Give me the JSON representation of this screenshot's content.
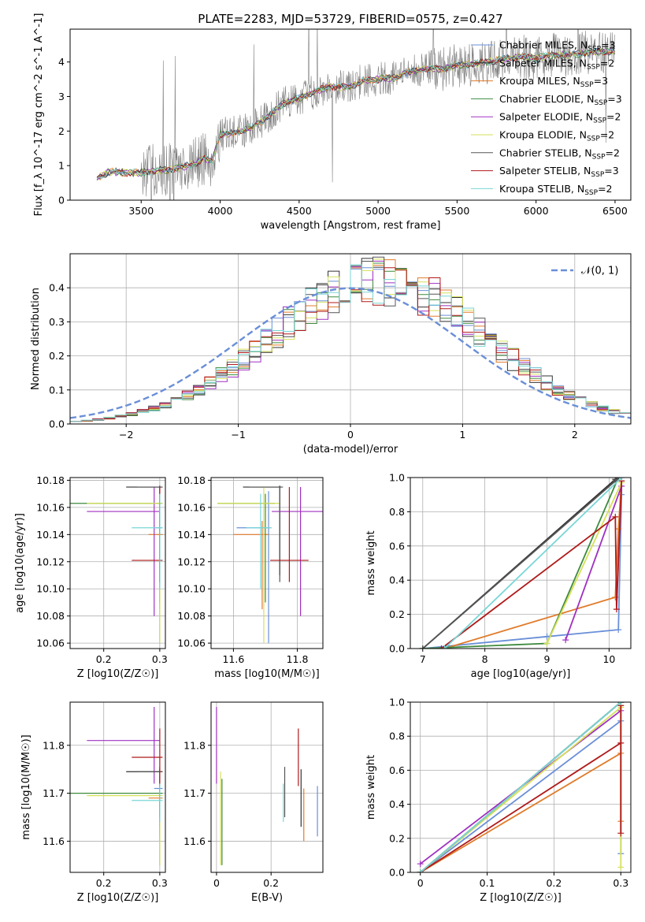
{
  "title": "PLATE=2283, MJD=53729, FIBERID=0575, z=0.427",
  "colors": {
    "Chabrier MILES": "#6a8fd8",
    "Salpeter MILES": "#333333",
    "Kroupa MILES": "#e07b2a",
    "Chabrier ELODIE": "#3d8a3d",
    "Salpeter ELODIE": "#a030c0",
    "Kroupa ELODIE": "#d6e05a",
    "Chabrier STELIB": "#555555",
    "Salpeter STELIB": "#b01a1a",
    "Kroupa STELIB": "#7ad6d6",
    "spectrum": "#808080",
    "normal": "#6a8fd8"
  },
  "chart_data": [
    {
      "id": "spectrum",
      "type": "line",
      "title": "PLATE=2283, MJD=53729, FIBERID=0575, z=0.427",
      "xlabel": "wavelength [Angstrom, rest frame]",
      "ylabel": "Flux [f_λ 10^-17 erg cm^-2 s^-1 A^-1]",
      "xlim": [
        3050,
        6600
      ],
      "ylim": [
        0,
        4.95
      ],
      "xticks": [
        3500,
        4000,
        4500,
        5000,
        5500,
        6000,
        6500
      ],
      "yticks": [
        0,
        1,
        2,
        3,
        4
      ],
      "legend_position": "top-right",
      "continuum": {
        "x": [
          3220,
          3300,
          3400,
          3500,
          3600,
          3700,
          3800,
          3900,
          3950,
          4000,
          4100,
          4200,
          4300,
          4400,
          4500,
          4600,
          4700,
          4800,
          4900,
          5000,
          5100,
          5200,
          5300,
          5400,
          5500,
          5600,
          5700,
          5800,
          5900,
          6000,
          6100,
          6200,
          6300,
          6400,
          6500
        ],
        "y": [
          0.65,
          0.82,
          0.8,
          0.8,
          0.85,
          0.9,
          1.0,
          1.2,
          1.15,
          1.9,
          1.95,
          2.1,
          2.4,
          2.8,
          2.95,
          3.15,
          3.3,
          3.25,
          3.45,
          3.5,
          3.55,
          3.7,
          3.8,
          3.8,
          3.9,
          3.95,
          4.0,
          4.1,
          4.15,
          4.1,
          4.2,
          4.2,
          4.25,
          4.3,
          4.3
        ]
      },
      "series": [
        {
          "name": "Chabrier MILES, N_SSP=3",
          "label_main": "Chabrier MILES, N",
          "label_sub": "SSP",
          "label_end": "=3"
        },
        {
          "name": "Salpeter MILES, N_SSP=2",
          "label_main": "Salpeter MILES, N",
          "label_sub": "SSP",
          "label_end": "=2"
        },
        {
          "name": "Kroupa MILES, N_SSP=3",
          "label_main": "Kroupa MILES, N",
          "label_sub": "SSP",
          "label_end": "=3"
        },
        {
          "name": "Chabrier ELODIE, N_SSP=3",
          "label_main": "Chabrier ELODIE, N",
          "label_sub": "SSP",
          "label_end": "=3"
        },
        {
          "name": "Salpeter ELODIE, N_SSP=2",
          "label_main": "Salpeter ELODIE, N",
          "label_sub": "SSP",
          "label_end": "=2"
        },
        {
          "name": "Kroupa ELODIE, N_SSP=2",
          "label_main": "Kroupa ELODIE, N",
          "label_sub": "SSP",
          "label_end": "=2"
        },
        {
          "name": "Chabrier STELIB, N_SSP=2",
          "label_main": "Chabrier STELIB, N",
          "label_sub": "SSP",
          "label_end": "=2"
        },
        {
          "name": "Salpeter STELIB, N_SSP=3",
          "label_main": "Salpeter STELIB, N",
          "label_sub": "SSP",
          "label_end": "=3"
        },
        {
          "name": "Kroupa STELIB, N_SSP=2",
          "label_main": "Kroupa STELIB, N",
          "label_sub": "SSP",
          "label_end": "=2"
        }
      ]
    },
    {
      "id": "residuals",
      "type": "histogram",
      "xlabel": "(data-model)/error",
      "ylabel": "Normed distribution",
      "xlim": [
        -2.5,
        2.5
      ],
      "ylim": [
        0,
        0.5
      ],
      "xticks": [
        -2,
        -1,
        0,
        1,
        2
      ],
      "yticks": [
        0.0,
        0.1,
        0.2,
        0.3,
        0.4
      ],
      "grid": true,
      "legend_position": "top-right",
      "legend_label": "𝒩(0, 1)",
      "reference": {
        "name": "N(0,1)",
        "mean": 0,
        "sigma": 1
      }
    },
    {
      "id": "age-vs-Z",
      "type": "errorbar",
      "xlabel": "Z [log10(Z/Z☉)]",
      "ylabel": "age [log10(age/yr)]",
      "xlim": [
        0.14,
        0.31
      ],
      "ylim": [
        10.056,
        10.182
      ],
      "xticks": [
        0.2,
        0.3
      ],
      "yticks": [
        10.06,
        10.08,
        10.1,
        10.12,
        10.14,
        10.16,
        10.18
      ],
      "grid": true
    },
    {
      "id": "age-vs-mass",
      "type": "errorbar",
      "xlabel": "mass [log10(M/M☉)]",
      "xlim": [
        11.53,
        11.88
      ],
      "ylim": [
        10.056,
        10.182
      ],
      "xticks": [
        11.6,
        11.8
      ],
      "yticks": [
        10.06,
        10.08,
        10.1,
        10.12,
        10.14,
        10.16,
        10.18
      ],
      "grid": true
    },
    {
      "id": "weight-vs-age",
      "type": "line",
      "xlabel": "age [log10(age/yr)]",
      "ylabel": "mass weight",
      "xlim": [
        6.8,
        10.35
      ],
      "ylim": [
        0,
        1
      ],
      "xticks": [
        7,
        8,
        9,
        10
      ],
      "yticks": [
        0.0,
        0.2,
        0.4,
        0.6,
        0.8,
        1.0
      ],
      "grid": true
    },
    {
      "id": "mass-vs-Z",
      "type": "errorbar",
      "xlabel": "Z [log10(Z/Z☉)]",
      "ylabel": "mass [log10(M/M☉)]",
      "xlim": [
        0.14,
        0.31
      ],
      "ylim": [
        11.535,
        11.89
      ],
      "xticks": [
        0.2,
        0.3
      ],
      "yticks": [
        11.6,
        11.7,
        11.8
      ],
      "grid": true
    },
    {
      "id": "mass-vs-ebv",
      "type": "errorbar",
      "xlabel": "E(B-V)",
      "xlim": [
        -0.02,
        0.39
      ],
      "ylim": [
        11.535,
        11.89
      ],
      "xticks": [
        0.0,
        0.2
      ],
      "yticks": [
        11.6,
        11.7,
        11.8
      ],
      "grid": true
    },
    {
      "id": "weight-vs-Z",
      "type": "line",
      "xlabel": "Z [log10(Z/Z☉)]",
      "ylabel": "mass weight",
      "xlim": [
        -0.015,
        0.315
      ],
      "ylim": [
        0,
        1
      ],
      "xticks": [
        0.0,
        0.1,
        0.2,
        0.3
      ],
      "yticks": [
        0.0,
        0.2,
        0.4,
        0.6,
        0.8,
        1.0
      ],
      "grid": true
    }
  ],
  "fits": [
    {
      "key": "Chabrier MILES",
      "age": 10.145,
      "age_lo": 10.06,
      "age_hi": 10.172,
      "Z": 0.3,
      "Z_lo": 0.29,
      "Z_hi": 0.305,
      "mass": 11.71,
      "mass_lo": 11.61,
      "mass_hi": 11.715,
      "ebv": 0.37,
      "w_age": [
        [
          7.0,
          0
        ],
        [
          9.0,
          0.07
        ],
        [
          10.15,
          0.11
        ],
        [
          10.2,
          0.9
        ],
        [
          10.2,
          1.0
        ]
      ],
      "w_Z": [
        [
          0,
          0
        ],
        [
          0.3,
          0.89
        ],
        [
          0.3,
          0.11
        ],
        [
          0.3,
          1.0
        ]
      ]
    },
    {
      "key": "Salpeter MILES",
      "age": 10.175,
      "age_lo": 10.11,
      "age_hi": 10.176,
      "Z": 0.3,
      "Z_lo": 0.24,
      "Z_hi": 0.305,
      "mass": 11.745,
      "mass_lo": 11.63,
      "mass_hi": 11.75,
      "ebv": 0.31,
      "w_age": [
        [
          7.0,
          0
        ],
        [
          10.1,
          0.99
        ],
        [
          10.15,
          1.0
        ]
      ],
      "w_Z": [
        [
          0,
          0
        ],
        [
          0.3,
          1.0
        ]
      ]
    },
    {
      "key": "Kroupa MILES",
      "age": 10.14,
      "age_lo": 10.085,
      "age_hi": 10.15,
      "Z": 0.3,
      "Z_lo": 0.28,
      "Z_hi": 0.305,
      "mass": 11.69,
      "mass_lo": 11.6,
      "mass_hi": 11.71,
      "ebv": 0.32,
      "w_age": [
        [
          7.35,
          0
        ],
        [
          10.1,
          0.3
        ],
        [
          10.15,
          0.7
        ],
        [
          10.2,
          0.98
        ]
      ],
      "w_Z": [
        [
          0,
          0
        ],
        [
          0.3,
          0.7
        ],
        [
          0.3,
          0.3
        ],
        [
          0.3,
          0.98
        ]
      ]
    },
    {
      "key": "Chabrier ELODIE",
      "age": 10.163,
      "age_lo": 10.09,
      "age_hi": 10.17,
      "Z": 0.3,
      "Z_lo": 0.14,
      "Z_hi": 0.305,
      "mass": 11.7,
      "mass_lo": 11.55,
      "mass_hi": 11.73,
      "ebv": 0.02,
      "w_age": [
        [
          7.0,
          0
        ],
        [
          9.0,
          0.03
        ],
        [
          10.15,
          1.0
        ]
      ],
      "w_Z": [
        [
          0,
          0
        ],
        [
          0.3,
          1.0
        ]
      ]
    },
    {
      "key": "Salpeter ELODIE",
      "age": 10.157,
      "age_lo": 10.08,
      "age_hi": 10.175,
      "Z": 0.29,
      "Z_lo": 0.17,
      "Z_hi": 0.3,
      "mass": 11.81,
      "mass_lo": 11.72,
      "mass_hi": 11.88,
      "ebv": 0.0,
      "w_age": [
        [
          9.3,
          0.05
        ],
        [
          10.2,
          0.95
        ]
      ],
      "w_Z": [
        [
          0,
          0.05
        ],
        [
          0.3,
          0.95
        ]
      ]
    },
    {
      "key": "Kroupa ELODIE",
      "age": 10.163,
      "age_lo": 10.06,
      "age_hi": 10.175,
      "Z": 0.3,
      "Z_lo": 0.17,
      "Z_hi": 0.305,
      "mass": 11.695,
      "mass_lo": 11.55,
      "mass_hi": 11.745,
      "ebv": 0.015,
      "w_age": [
        [
          9.0,
          0.03
        ],
        [
          10.2,
          0.97
        ]
      ],
      "w_Z": [
        [
          0,
          0
        ],
        [
          0.3,
          0.97
        ],
        [
          0.3,
          0.03
        ]
      ]
    },
    {
      "key": "Chabrier STELIB",
      "age": 10.175,
      "age_lo": 10.105,
      "age_hi": 10.176,
      "Z": 0.3,
      "Z_lo": 0.26,
      "Z_hi": 0.305,
      "mass": 11.745,
      "mass_lo": 11.65,
      "mass_hi": 11.755,
      "ebv": 0.25,
      "w_age": [
        [
          7.0,
          0
        ],
        [
          10.1,
          0.98
        ],
        [
          10.15,
          1.0
        ]
      ],
      "w_Z": [
        [
          0,
          0
        ],
        [
          0.3,
          1.0
        ]
      ]
    },
    {
      "key": "Salpeter STELIB",
      "age": 10.121,
      "age_lo": 10.105,
      "age_hi": 10.175,
      "Z": 0.3,
      "Z_lo": 0.25,
      "Z_hi": 0.305,
      "mass": 11.775,
      "mass_lo": 11.715,
      "mass_hi": 11.835,
      "ebv": 0.3,
      "w_age": [
        [
          7.3,
          0
        ],
        [
          10.1,
          0.77
        ],
        [
          10.12,
          0.23
        ],
        [
          10.2,
          0.98
        ]
      ],
      "w_Z": [
        [
          0,
          0
        ],
        [
          0.3,
          0.76
        ],
        [
          0.3,
          0.23
        ],
        [
          0.3,
          0.98
        ]
      ]
    },
    {
      "key": "Kroupa STELIB",
      "age": 10.145,
      "age_lo": 10.1,
      "age_hi": 10.17,
      "Z": 0.3,
      "Z_lo": 0.25,
      "Z_hi": 0.305,
      "mass": 11.685,
      "mass_lo": 11.64,
      "mass_hi": 11.72,
      "ebv": 0.245,
      "w_age": [
        [
          7.35,
          0
        ],
        [
          10.2,
          1.0
        ]
      ],
      "w_Z": [
        [
          0,
          0
        ],
        [
          0.3,
          1.0
        ]
      ]
    }
  ]
}
